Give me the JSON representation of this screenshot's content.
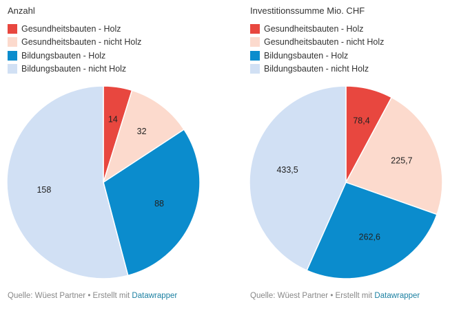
{
  "source": {
    "prefix": "Quelle: Wüest Partner • Erstellt mit ",
    "link": "Datawrapper"
  },
  "chart_data": [
    {
      "type": "pie",
      "title": "Anzahl",
      "categories": [
        "Gesundheitsbauten - Holz",
        "Gesundheitsbauten - nicht Holz",
        "Bildungsbauten - Holz",
        "Bildungsbauten - nicht Holz"
      ],
      "values": [
        14,
        32,
        88,
        158
      ],
      "value_labels": [
        "14",
        "32",
        "88",
        "158"
      ],
      "colors": [
        "#e8473f",
        "#fcdacd",
        "#0b8ccd",
        "#d1e0f4"
      ],
      "legend": "top-left"
    },
    {
      "type": "pie",
      "title": "Investitionssumme Mio. CHF",
      "categories": [
        "Gesundheitsbauten - Holz",
        "Gesundheitsbauten - nicht Holz",
        "Bildungsbauten - Holz",
        "Bildungsbauten - nicht Holz"
      ],
      "values": [
        78.4,
        225.7,
        262.6,
        433.5
      ],
      "value_labels": [
        "78,4",
        "225,7",
        "262,6",
        "433,5"
      ],
      "colors": [
        "#e8473f",
        "#fcdacd",
        "#0b8ccd",
        "#d1e0f4"
      ],
      "legend": "top-left"
    }
  ]
}
